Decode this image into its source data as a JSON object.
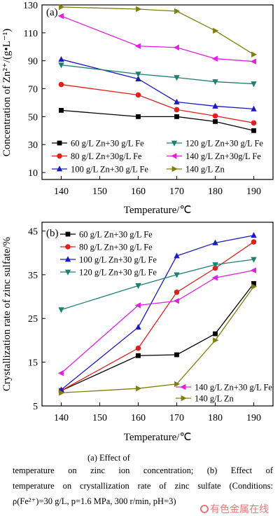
{
  "chart_data": [
    {
      "type": "line",
      "panel_label": "(a)",
      "xlabel": "Temperature/℃",
      "ylabel": "Concentration of Zn²⁺/(g•L⁻¹)",
      "xlim": [
        135,
        195
      ],
      "ylim": [
        5,
        130
      ],
      "xticks": [
        140,
        150,
        160,
        170,
        180,
        190
      ],
      "yticks": [
        10,
        30,
        50,
        70,
        90,
        110,
        130
      ],
      "x": [
        140,
        160,
        170,
        180,
        190
      ],
      "legend_placement": "bottom",
      "series": [
        {
          "name": "60 g/L Zn+30 g/L Fe",
          "color": "#000000",
          "marker": "square",
          "values": [
            54.5,
            50,
            50,
            46.5,
            40
          ]
        },
        {
          "name": "80 g/L Zn+30g/L Fe",
          "color": "#e0201b",
          "marker": "circle",
          "values": [
            73,
            65.5,
            55,
            50.5,
            45.5
          ]
        },
        {
          "name": "100 g/L Zn+30 g/L Fe",
          "color": "#1a1ac8",
          "marker": "triangle-up",
          "values": [
            91,
            77,
            60.5,
            57.5,
            55.5
          ]
        },
        {
          "name": "120 g/L Zn+30 g/L Fe",
          "color": "#1f8070",
          "marker": "triangle-down",
          "values": [
            87,
            80.5,
            78,
            75,
            73.5
          ]
        },
        {
          "name": "140 g/L Zn+30g/L Fe",
          "color": "#e020e0",
          "marker": "triangle-left",
          "values": [
            122,
            100.5,
            99.5,
            91.5,
            89.5
          ]
        },
        {
          "name": "140 g/L Zn",
          "color": "#7f7f10",
          "marker": "triangle-right",
          "values": [
            128.5,
            127,
            125.5,
            111.5,
            94.5
          ]
        }
      ]
    },
    {
      "type": "line",
      "panel_label": "(b)",
      "xlabel": "Temperature/℃",
      "ylabel": "Crystallization rate of zinc sulfate/%",
      "xlim": [
        135,
        195
      ],
      "ylim": [
        5,
        47
      ],
      "xticks": [
        140,
        150,
        160,
        170,
        180,
        190
      ],
      "yticks": [
        5,
        15,
        25,
        35,
        45
      ],
      "x": [
        140,
        160,
        170,
        180,
        190
      ],
      "series": [
        {
          "name": "60 g/L Zn+30 g/L Fe",
          "color": "#000000",
          "marker": "square",
          "values": [
            8.5,
            16.5,
            16.7,
            21.5,
            33
          ]
        },
        {
          "name": "80 g/L Zn+30 g/L Fe",
          "color": "#e0201b",
          "marker": "circle",
          "values": [
            8.5,
            18.2,
            31,
            36.5,
            42.5
          ]
        },
        {
          "name": "100 g/L Zn+30 g/L Fe",
          "color": "#1a1ac8",
          "marker": "triangle-up",
          "values": [
            8.7,
            23,
            39.3,
            42.3,
            44
          ]
        },
        {
          "name": "120 g/L Zn+30 g/L Fe",
          "color": "#1f8070",
          "marker": "triangle-down",
          "values": [
            27,
            32.5,
            35,
            37.3,
            38.5
          ]
        },
        {
          "name": "140 g/L Zn+30 g/L Fe",
          "color": "#e020e0",
          "marker": "triangle-left",
          "values": [
            12.5,
            28,
            29,
            34.3,
            36
          ]
        },
        {
          "name": "140 g/L Zn",
          "color": "#7f7f10",
          "marker": "triangle-right",
          "values": [
            8,
            9,
            10,
            20,
            32.3
          ]
        }
      ]
    }
  ],
  "caption": {
    "line1": "(a)  Effect  of",
    "line2": "temperature  on  zinc  ion  concentration;  (b)  Effect  of",
    "line3": "temperature on crystallization rate of zinc sulfate (Conditions:",
    "line4": "ρ(Fe²⁺)=30 g/L, p=1.6 MPa, 300 r/min, pH=3)"
  },
  "watermark": "有色金属在线"
}
